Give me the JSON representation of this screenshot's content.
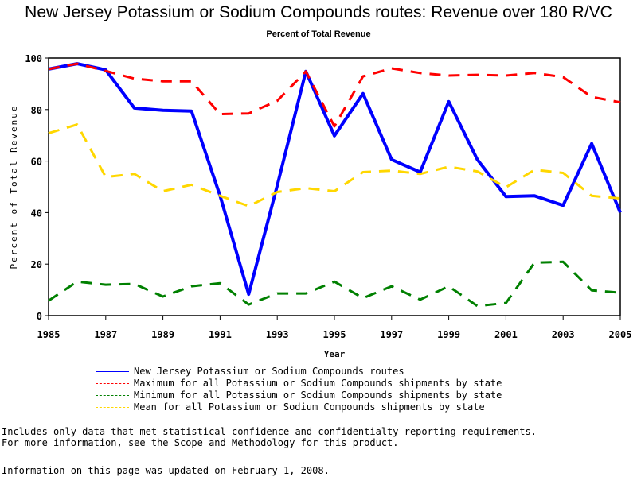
{
  "chart_data": {
    "type": "line",
    "title": "New Jersey Potassium or Sodium Compounds routes: Revenue over 180 R/VC",
    "subtitle": "Percent of Total Revenue",
    "xlabel": "Year",
    "ylabel": "Percent of Total Revenue",
    "xlim": [
      1985,
      2005
    ],
    "ylim": [
      0,
      100
    ],
    "x_ticks": [
      "1985",
      "1987",
      "1989",
      "1991",
      "1993",
      "1995",
      "1997",
      "1999",
      "2001",
      "2003",
      "2005"
    ],
    "y_ticks": [
      "0",
      "20",
      "40",
      "60",
      "80",
      "100"
    ],
    "x": [
      1985,
      1986,
      1987,
      1988,
      1989,
      1990,
      1991,
      1992,
      1993,
      1994,
      1995,
      1996,
      1997,
      1998,
      1999,
      2000,
      2001,
      2002,
      2003,
      2004,
      2005
    ],
    "legend_position": "bottom",
    "series": [
      {
        "name": "New Jersey Potassium or Sodium Compounds routes",
        "color": "#0000ff",
        "style": "solid",
        "values": [
          95.7,
          97.8,
          95.4,
          80.6,
          79.7,
          79.4,
          46.5,
          8.3,
          50.5,
          94.8,
          69.8,
          86.2,
          60.6,
          55.7,
          83.1,
          60.6,
          46.2,
          46.5,
          42.8,
          66.8,
          40.0
        ]
      },
      {
        "name": "Maximum for all Potassium or Sodium Compounds shipments by state",
        "color": "#ff0000",
        "style": "dashed",
        "values": [
          95.7,
          97.8,
          95.0,
          92.0,
          91.0,
          91.0,
          78.2,
          78.5,
          83.4,
          94.8,
          73.5,
          92.9,
          96.0,
          94.2,
          93.2,
          93.5,
          93.2,
          94.2,
          92.6,
          84.9,
          82.8
        ]
      },
      {
        "name": "Minimum for all Potassium or Sodium Compounds shipments by state",
        "color": "#008000",
        "style": "dashed",
        "values": [
          5.8,
          13.2,
          12.0,
          12.3,
          7.4,
          11.4,
          12.6,
          4.3,
          8.6,
          8.6,
          13.2,
          6.8,
          11.4,
          6.2,
          11.4,
          3.7,
          4.9,
          20.6,
          20.9,
          9.8,
          8.9
        ]
      },
      {
        "name": "Mean for all Potassium or Sodium Compounds shipments by state",
        "color": "#ffd700",
        "style": "dashed",
        "values": [
          70.8,
          74.2,
          53.8,
          55.0,
          48.3,
          50.8,
          46.5,
          42.5,
          48.0,
          49.5,
          48.3,
          55.7,
          56.3,
          55.0,
          57.8,
          56.0,
          49.8,
          56.6,
          55.4,
          46.5,
          45.5
        ]
      }
    ]
  },
  "footnotes": {
    "line1": "Includes only data that met statistical confidence and confidentialty reporting requirements.",
    "line2": "For more information, see the Scope and Methodology for this product.",
    "updated": "Information on this page was updated on February 1, 2008."
  }
}
